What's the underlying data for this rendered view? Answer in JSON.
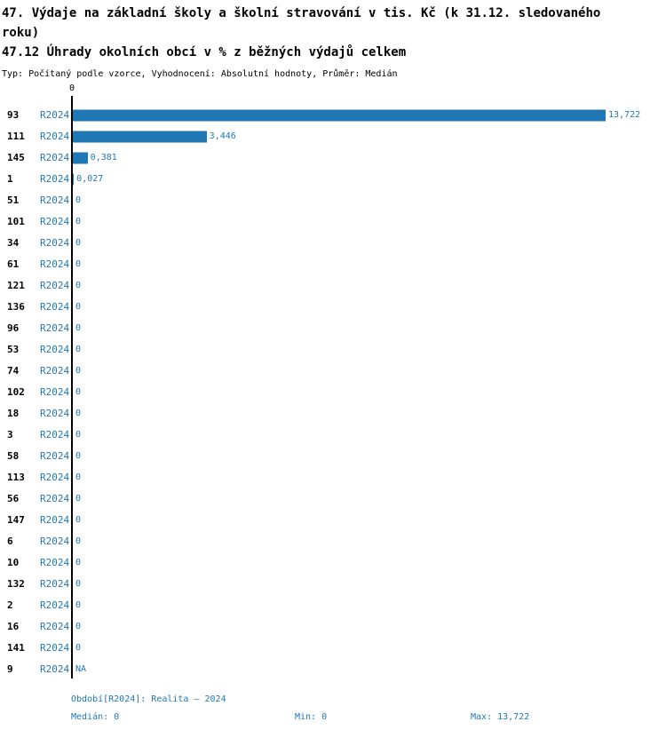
{
  "header": {
    "title_line1": "47. Výdaje na základní školy a školní stravování v tis. Kč (k 31.12. sledovaného roku)",
    "title_line2": "47.12 Úhrady okolních obcí v % z běžných výdajů celkem",
    "meta": "Typ: Počítaný podle vzorce, Vyhodnocení: Absolutní hodnoty, Průměr: Medián"
  },
  "chart_data": {
    "type": "bar",
    "orientation": "horizontal",
    "title": "47.12 Úhrady okolních obcí v % z běžných výdajů celkem",
    "axis_zero_label": "0",
    "period_label": "R2024",
    "bar_color": "#1f77b4",
    "xlim": [
      0,
      13.722
    ],
    "categories": [
      "93",
      "111",
      "145",
      "1",
      "51",
      "101",
      "34",
      "61",
      "121",
      "136",
      "96",
      "53",
      "74",
      "102",
      "18",
      "3",
      "58",
      "113",
      "56",
      "147",
      "6",
      "10",
      "132",
      "2",
      "16",
      "141",
      "9"
    ],
    "series": [
      {
        "name": "R2024",
        "values": [
          13.722,
          3.446,
          0.381,
          0.027,
          0,
          0,
          0,
          0,
          0,
          0,
          0,
          0,
          0,
          0,
          0,
          0,
          0,
          0,
          0,
          0,
          0,
          0,
          0,
          0,
          0,
          0,
          null
        ]
      }
    ],
    "rows": [
      {
        "id": "93",
        "value": 13.722,
        "label": "13,722"
      },
      {
        "id": "111",
        "value": 3.446,
        "label": "3,446"
      },
      {
        "id": "145",
        "value": 0.381,
        "label": "0,381"
      },
      {
        "id": "1",
        "value": 0.027,
        "label": "0,027"
      },
      {
        "id": "51",
        "value": 0,
        "label": "0"
      },
      {
        "id": "101",
        "value": 0,
        "label": "0"
      },
      {
        "id": "34",
        "value": 0,
        "label": "0"
      },
      {
        "id": "61",
        "value": 0,
        "label": "0"
      },
      {
        "id": "121",
        "value": 0,
        "label": "0"
      },
      {
        "id": "136",
        "value": 0,
        "label": "0"
      },
      {
        "id": "96",
        "value": 0,
        "label": "0"
      },
      {
        "id": "53",
        "value": 0,
        "label": "0"
      },
      {
        "id": "74",
        "value": 0,
        "label": "0"
      },
      {
        "id": "102",
        "value": 0,
        "label": "0"
      },
      {
        "id": "18",
        "value": 0,
        "label": "0"
      },
      {
        "id": "3",
        "value": 0,
        "label": "0"
      },
      {
        "id": "58",
        "value": 0,
        "label": "0"
      },
      {
        "id": "113",
        "value": 0,
        "label": "0"
      },
      {
        "id": "56",
        "value": 0,
        "label": "0"
      },
      {
        "id": "147",
        "value": 0,
        "label": "0"
      },
      {
        "id": "6",
        "value": 0,
        "label": "0"
      },
      {
        "id": "10",
        "value": 0,
        "label": "0"
      },
      {
        "id": "132",
        "value": 0,
        "label": "0"
      },
      {
        "id": "2",
        "value": 0,
        "label": "0"
      },
      {
        "id": "16",
        "value": 0,
        "label": "0"
      },
      {
        "id": "141",
        "value": 0,
        "label": "0"
      },
      {
        "id": "9",
        "value": null,
        "label": "NA"
      }
    ]
  },
  "footer": {
    "period": "Období[R2024]: Realita – 2024",
    "median": "Medián: 0",
    "min": "Min: 0",
    "max": "Max: 13,722"
  }
}
